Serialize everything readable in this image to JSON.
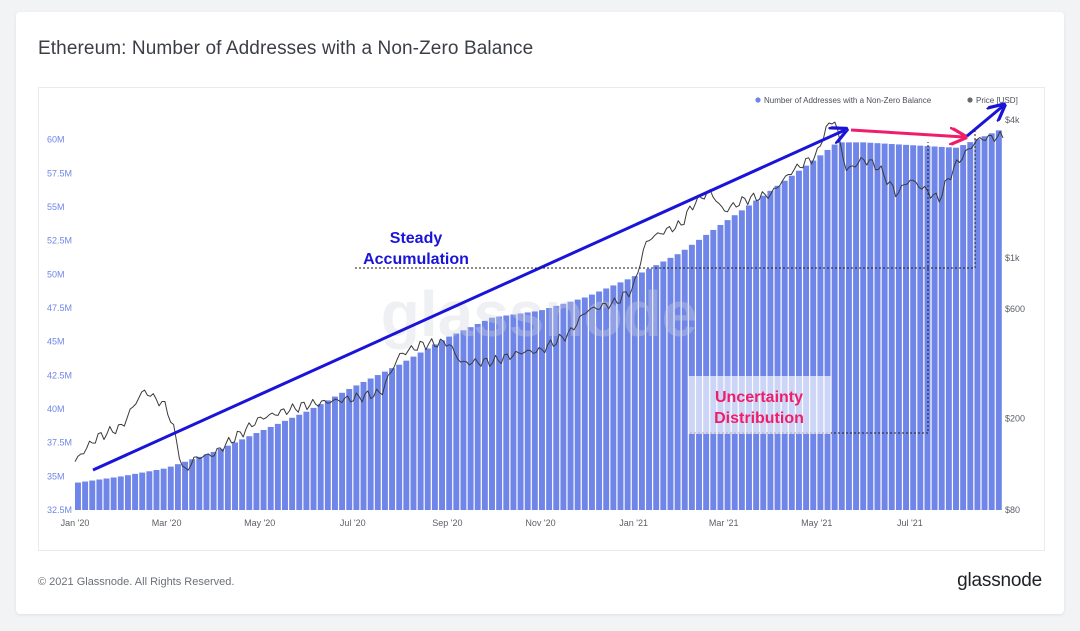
{
  "title": "Ethereum: Number of Addresses with a Non-Zero Balance",
  "footer": {
    "copyright": "© 2021 Glassnode. All Rights Reserved.",
    "logo": "glassnode"
  },
  "watermark": "glassnode",
  "colors": {
    "bars": "#6f86e8",
    "bars_edge": "#5b74e0",
    "price": "#3a3a3a",
    "annotation_blue": "#1a14d9",
    "annotation_pink": "#ef1e6a",
    "axis_text": "#8a8f98",
    "left_axis_text": "#6f86e8"
  },
  "annotations": {
    "steady": [
      "Steady",
      "Accumulation"
    ],
    "uncertainty": [
      "Uncertainty",
      "Distribution"
    ]
  },
  "chart_data": {
    "type": "bar",
    "x_range": [
      "2020-01-01",
      "2021-08-31"
    ],
    "x_ticks": [
      "Jan '20",
      "Mar '20",
      "May '20",
      "Jul '20",
      "Sep '20",
      "Nov '20",
      "Jan '21",
      "Mar '21",
      "May '21",
      "Jul '21"
    ],
    "legend": {
      "placement": "top-right",
      "entries": [
        {
          "name": "Number of Addresses with a Non-Zero Balance",
          "color": "#6f86e8"
        },
        {
          "name": "Price [USD]",
          "color": "#6b6b6b"
        }
      ]
    },
    "y_left": {
      "ticks": [
        "32.5M",
        "35M",
        "37.5M",
        "40M",
        "42.5M",
        "45M",
        "47.5M",
        "50M",
        "52.5M",
        "55M",
        "57.5M",
        "60M"
      ],
      "range": [
        32.5,
        62.5
      ],
      "unit": "M"
    },
    "y_right": {
      "scale": "log",
      "ticks": [
        {
          "label": "$80",
          "value": 80
        },
        {
          "label": "$200",
          "value": 200
        },
        {
          "label": "$600",
          "value": 600
        },
        {
          "label": "$1k",
          "value": 1000
        },
        {
          "label": "$4k",
          "value": 4000
        }
      ],
      "range": [
        80,
        4600
      ]
    },
    "series": [
      {
        "name": "Number of Addresses with a Non-Zero Balance",
        "x": [
          "2020-01-01",
          "2020-02-01",
          "2020-03-01",
          "2020-04-01",
          "2020-05-01",
          "2020-06-01",
          "2020-07-01",
          "2020-08-01",
          "2020-09-01",
          "2020-10-01",
          "2020-11-01",
          "2020-12-01",
          "2021-01-01",
          "2021-02-01",
          "2021-03-01",
          "2021-04-01",
          "2021-05-01",
          "2021-05-15",
          "2021-06-01",
          "2021-07-01",
          "2021-08-01",
          "2021-08-31"
        ],
        "values": [
          34.5,
          35.0,
          35.6,
          36.8,
          38.3,
          39.8,
          41.6,
          43.3,
          45.3,
          46.8,
          47.3,
          48.3,
          49.8,
          51.6,
          53.8,
          56.2,
          58.6,
          59.8,
          59.8,
          59.6,
          59.4,
          60.8
        ]
      },
      {
        "name": "Price [USD]",
        "x": [
          "2020-01-01",
          "2020-01-15",
          "2020-02-01",
          "2020-02-15",
          "2020-03-01",
          "2020-03-12",
          "2020-03-20",
          "2020-04-01",
          "2020-04-20",
          "2020-05-01",
          "2020-06-01",
          "2020-07-01",
          "2020-07-20",
          "2020-08-01",
          "2020-08-15",
          "2020-09-01",
          "2020-09-10",
          "2020-10-01",
          "2020-10-20",
          "2020-11-01",
          "2020-11-20",
          "2020-12-01",
          "2020-12-20",
          "2021-01-01",
          "2021-01-10",
          "2021-01-20",
          "2021-02-01",
          "2021-02-10",
          "2021-02-20",
          "2021-03-01",
          "2021-03-15",
          "2021-04-01",
          "2021-04-15",
          "2021-05-01",
          "2021-05-05",
          "2021-05-12",
          "2021-05-20",
          "2021-06-01",
          "2021-06-10",
          "2021-06-22",
          "2021-07-01",
          "2021-07-15",
          "2021-07-20",
          "2021-08-01",
          "2021-08-15",
          "2021-08-31"
        ],
        "values": [
          130,
          165,
          185,
          265,
          225,
          115,
          135,
          140,
          175,
          200,
          230,
          245,
          260,
          380,
          420,
          430,
          350,
          355,
          390,
          395,
          470,
          590,
          640,
          740,
          1200,
          1300,
          1400,
          1750,
          1950,
          1600,
          1800,
          1900,
          2400,
          2800,
          3400,
          4100,
          2400,
          2700,
          2500,
          1900,
          2200,
          1900,
          1800,
          2600,
          3300,
          3400
        ]
      }
    ]
  }
}
